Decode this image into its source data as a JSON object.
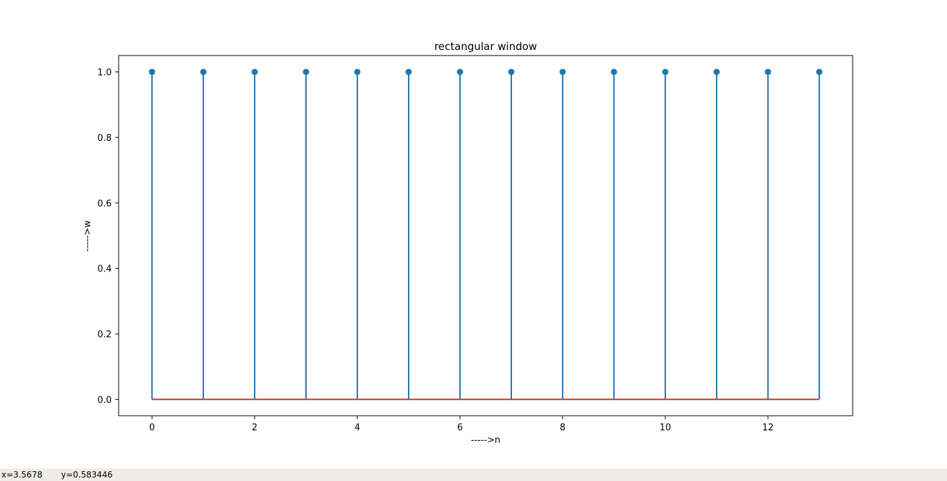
{
  "chart_data": {
    "type": "stem",
    "title": "rectangular window",
    "xlabel": "----->n",
    "ylabel": "----->w",
    "x": [
      0,
      1,
      2,
      3,
      4,
      5,
      6,
      7,
      8,
      9,
      10,
      11,
      12,
      13
    ],
    "y": [
      1.0,
      1.0,
      1.0,
      1.0,
      1.0,
      1.0,
      1.0,
      1.0,
      1.0,
      1.0,
      1.0,
      1.0,
      1.0,
      1.0
    ],
    "xlim": [
      -0.65,
      13.65
    ],
    "ylim": [
      -0.05,
      1.05
    ],
    "xticks": [
      0,
      2,
      4,
      6,
      8,
      10,
      12
    ],
    "xtick_labels": [
      "0",
      "2",
      "4",
      "6",
      "8",
      "10",
      "12"
    ],
    "yticks": [
      0.0,
      0.2,
      0.4,
      0.6,
      0.8,
      1.0
    ],
    "ytick_labels": [
      "0.0",
      "0.2",
      "0.4",
      "0.6",
      "0.8",
      "1.0"
    ],
    "baseline": 0,
    "grid": false,
    "colors": {
      "stem": "#1f77b4",
      "baseline": "#d62728"
    }
  },
  "status_bar": {
    "x_readout": "x=3.5678",
    "y_readout": "y=0.583446"
  }
}
